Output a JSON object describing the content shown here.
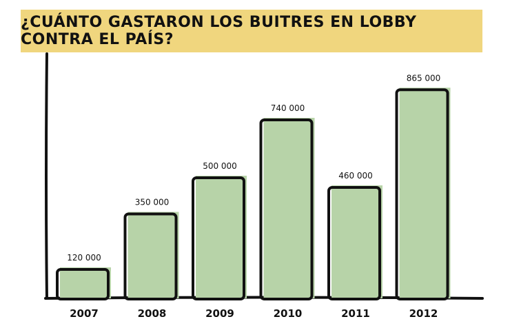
{
  "title": "¿CUÁNTO GASTARON LOS BUITRES EN LOBBY CONTRA EL PAÍS?",
  "colors": {
    "title_band": "#f0d67e",
    "bar_fill": "#b7d3a8",
    "outline": "#111111"
  },
  "chart_data": {
    "type": "bar",
    "title": "¿CUÁNTO GASTARON LOS BUITRES EN LOBBY CONTRA EL PAÍS?",
    "categories": [
      "2007",
      "2008",
      "2009",
      "2010",
      "2011",
      "2012"
    ],
    "values": [
      120000,
      350000,
      500000,
      740000,
      460000,
      865000
    ],
    "value_labels": [
      "120 000",
      "350 000",
      "500 000",
      "740 000",
      "460 000",
      "865 000"
    ],
    "xlabel": "",
    "ylabel": "",
    "ylim": [
      0,
      1000000
    ],
    "grid": false,
    "legend": "none"
  }
}
